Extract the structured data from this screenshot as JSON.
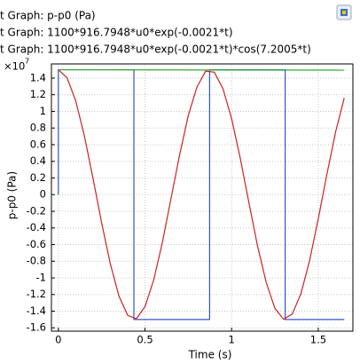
{
  "chart_data": {
    "type": "line",
    "y_label": "p-p0 (Pa)",
    "x_label": "Time (s)",
    "y_multiplier": "×10",
    "y_multiplier_exponent": "7",
    "xlim": [
      -0.04,
      1.7
    ],
    "ylim": [
      -1.64,
      1.57
    ],
    "xticks": [
      0,
      0.5,
      1,
      1.5
    ],
    "yticks": [
      -1.6,
      -1.4,
      -1.2,
      -1,
      -0.8,
      -0.6,
      -0.4,
      -0.2,
      0,
      0.2,
      0.4,
      0.6,
      0.8,
      1,
      1.2,
      1.4
    ],
    "grid": true,
    "series": [
      {
        "name": "t Graph: p-p0 (Pa)",
        "color": "#3355cc",
        "x": [
          0,
          0,
          0.436,
          0.436,
          0.873,
          0.873,
          1.309,
          1.309,
          1.65
        ],
        "values": [
          0,
          1.5,
          1.5,
          -1.5,
          -1.5,
          1.5,
          1.5,
          -1.5,
          -1.5
        ]
      },
      {
        "name": "t Graph: 1100*916.7948*u0*exp(-0.0021*t)",
        "color": "#33aa33",
        "x": [
          0,
          1.65
        ],
        "values": [
          1.5,
          1.495
        ]
      },
      {
        "name": "t Graph: 1100*916.7948*u0*exp(-0.0021*t)*cos(7.2005*t)",
        "color": "#cc2222",
        "x": [
          0,
          0.05,
          0.1,
          0.15,
          0.2,
          0.25,
          0.3,
          0.35,
          0.4,
          0.45,
          0.5,
          0.55,
          0.6,
          0.65,
          0.7,
          0.75,
          0.8,
          0.85,
          0.9,
          0.95,
          1,
          1.05,
          1.1,
          1.15,
          1.2,
          1.25,
          1.3,
          1.35,
          1.4,
          1.45,
          1.5,
          1.55,
          1.6,
          1.65
        ],
        "values": [
          1.5,
          1.404,
          1.128,
          0.707,
          0.196,
          -0.341,
          -0.833,
          -1.22,
          -1.45,
          -1.492,
          -1.345,
          -1.027,
          -0.577,
          -0.049,
          0.48,
          0.952,
          1.293,
          1.483,
          1.471,
          1.273,
          0.912,
          0.435,
          -0.099,
          -0.621,
          -1.059,
          -1.367,
          -1.497,
          -1.434,
          -1.19,
          -0.792,
          -0.291,
          0.245,
          0.752,
          1.161
        ]
      }
    ]
  }
}
